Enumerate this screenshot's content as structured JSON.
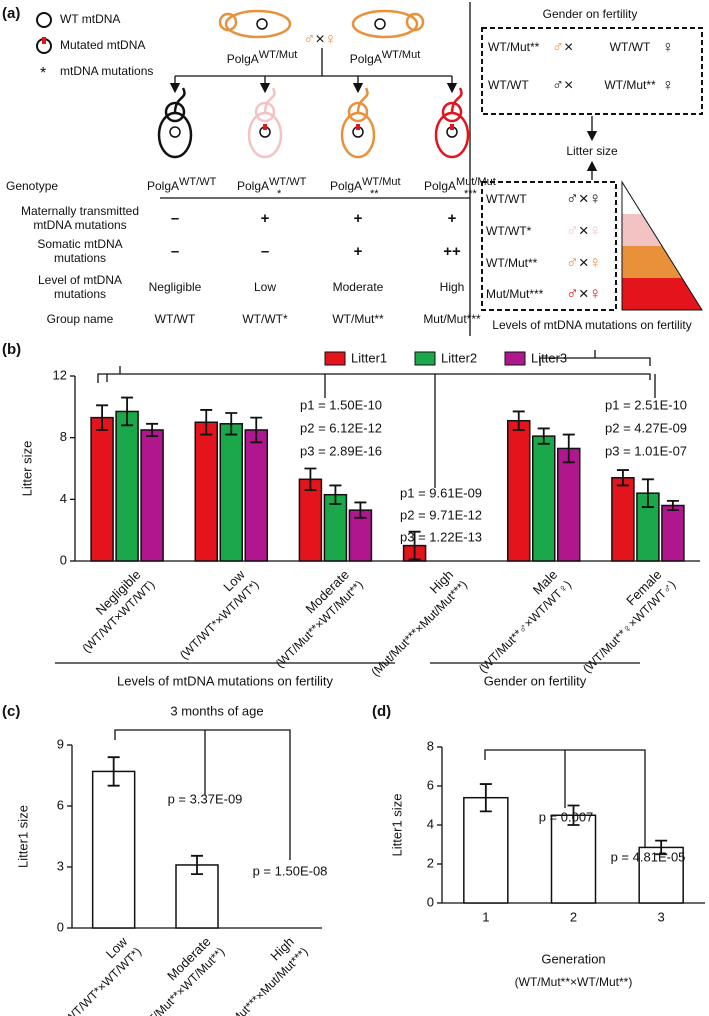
{
  "panel_a": {
    "label": "(a)",
    "legend": [
      "WT mtDNA",
      "Mutated mtDNA",
      "mtDNA mutations"
    ],
    "legend_star": "*",
    "parents": [
      {
        "base": "PolgA",
        "sup": "WT/Mut"
      },
      {
        "base": "PolgA",
        "sup": "WT/Mut"
      }
    ],
    "male": "♂",
    "cross": "×",
    "female": "♀",
    "genotype_label": "Genotype",
    "genotypes": [
      {
        "base": "PolgA",
        "sup": "WT/WT"
      },
      {
        "base": "PolgA",
        "sup": "WT/WT",
        "sub": "*"
      },
      {
        "base": "PolgA",
        "sup": "WT/Mut",
        "sub": "**"
      },
      {
        "base": "PolgA",
        "sup": "Mut/Mut",
        "sub": "***"
      }
    ],
    "rows": [
      {
        "label": [
          "Maternally transmitted",
          "mtDNA mutations"
        ],
        "cells": [
          "–",
          "+",
          "+",
          "+"
        ]
      },
      {
        "label": [
          "Somatic mtDNA",
          "mutations"
        ],
        "cells": [
          "–",
          "–",
          "+",
          "++"
        ]
      },
      {
        "label": [
          "Level of mtDNA",
          "mutations"
        ],
        "cells": [
          "Negligible",
          "Low",
          "Moderate",
          "High"
        ]
      },
      {
        "label": [
          "Group name"
        ],
        "cells": [
          "WT/WT",
          "WT/WT*",
          "WT/Mut**",
          "Mut/Mut***"
        ]
      }
    ],
    "group_colors": [
      "#111111",
      "#f3c3c3",
      "#e8913a",
      "#e3141c"
    ],
    "gender_title": "Gender on fertility",
    "gender_crosses": [
      [
        "WT/Mut**",
        "WT/WT"
      ],
      [
        "WT/WT",
        "WT/Mut**"
      ]
    ],
    "litter_size": "Litter size",
    "level_title": "Levels of mtDNA mutations on fertility"
  },
  "chart_data": [
    {
      "type": "bar",
      "label": "(b)",
      "ylabel": "Litter size",
      "categories": [
        "Negligible",
        "Low",
        "Moderate",
        "High",
        "Male",
        "Female"
      ],
      "crosses": [
        "(WT/WT×WT/WT)",
        "(WT/WT*×WT/WT*)",
        "(WT/Mut**×WT/Mut**)",
        "(Mut/Mut***×Mut/Mut***)",
        "(WT/Mut**♂×WT/WT♀)",
        "(WT/Mut**♀×WT/WT♂)"
      ],
      "series": [
        {
          "name": "Litter1",
          "color": "#e3141c",
          "values": [
            9.3,
            9.0,
            5.3,
            1.0,
            9.1,
            5.4
          ],
          "errors": [
            0.8,
            0.8,
            0.7,
            0.9,
            0.6,
            0.5
          ]
        },
        {
          "name": "Litter2",
          "color": "#1aa84a",
          "values": [
            9.7,
            8.9,
            4.3,
            0,
            8.1,
            4.4
          ],
          "errors": [
            0.9,
            0.7,
            0.6,
            0,
            0.5,
            0.9
          ]
        },
        {
          "name": "Litter3",
          "color": "#b0168e",
          "values": [
            8.5,
            8.5,
            3.3,
            0,
            7.3,
            3.6
          ],
          "errors": [
            0.4,
            0.8,
            0.5,
            0,
            0.9,
            0.3
          ]
        }
      ],
      "ylim": [
        0,
        12
      ],
      "yticks": [
        0,
        4,
        8,
        12
      ],
      "annotations": [
        [
          "p1 = 1.50E-10",
          "p2 = 6.12E-12",
          "p3 = 2.89E-16"
        ],
        [
          "p1 = 9.61E-09",
          "p2 = 9.71E-12",
          "p3 = 1.22E-13"
        ],
        [
          "p1 = 2.51E-10",
          "p2 = 4.27E-09",
          "p3 = 1.01E-07"
        ]
      ],
      "group_labels": [
        "Levels of mtDNA mutations on fertility",
        "Gender on fertility"
      ]
    },
    {
      "type": "bar",
      "label": "(c)",
      "title": "3 months of age",
      "ylabel": "Litter1 size",
      "categories": [
        "Low",
        "Moderate",
        "High"
      ],
      "crosses": [
        "(WT/WT*×WT/WT*)",
        "(WT/Mut**×WT/Mut**)",
        "(Mut/Mut***×Mut/Mut***)"
      ],
      "values": [
        7.7,
        3.1,
        0
      ],
      "errors": [
        0.7,
        0.45,
        0
      ],
      "color": "#ffffff",
      "ylim": [
        0,
        9
      ],
      "yticks": [
        0,
        3,
        6,
        9
      ],
      "annotations": [
        "p = 3.37E-09",
        "p = 1.50E-08"
      ]
    },
    {
      "type": "bar",
      "label": "(d)",
      "ylabel": "Litter1 size",
      "xlabel": "Generation",
      "xsubtitle": "(WT/Mut**×WT/Mut**)",
      "categories": [
        "1",
        "2",
        "3"
      ],
      "values": [
        5.4,
        4.5,
        2.85
      ],
      "errors": [
        0.7,
        0.5,
        0.35
      ],
      "color": "#ffffff",
      "ylim": [
        0,
        8
      ],
      "yticks": [
        0,
        2,
        4,
        6,
        8
      ],
      "annotations": [
        "p = 0.007",
        "p = 4.81E-05"
      ]
    }
  ]
}
